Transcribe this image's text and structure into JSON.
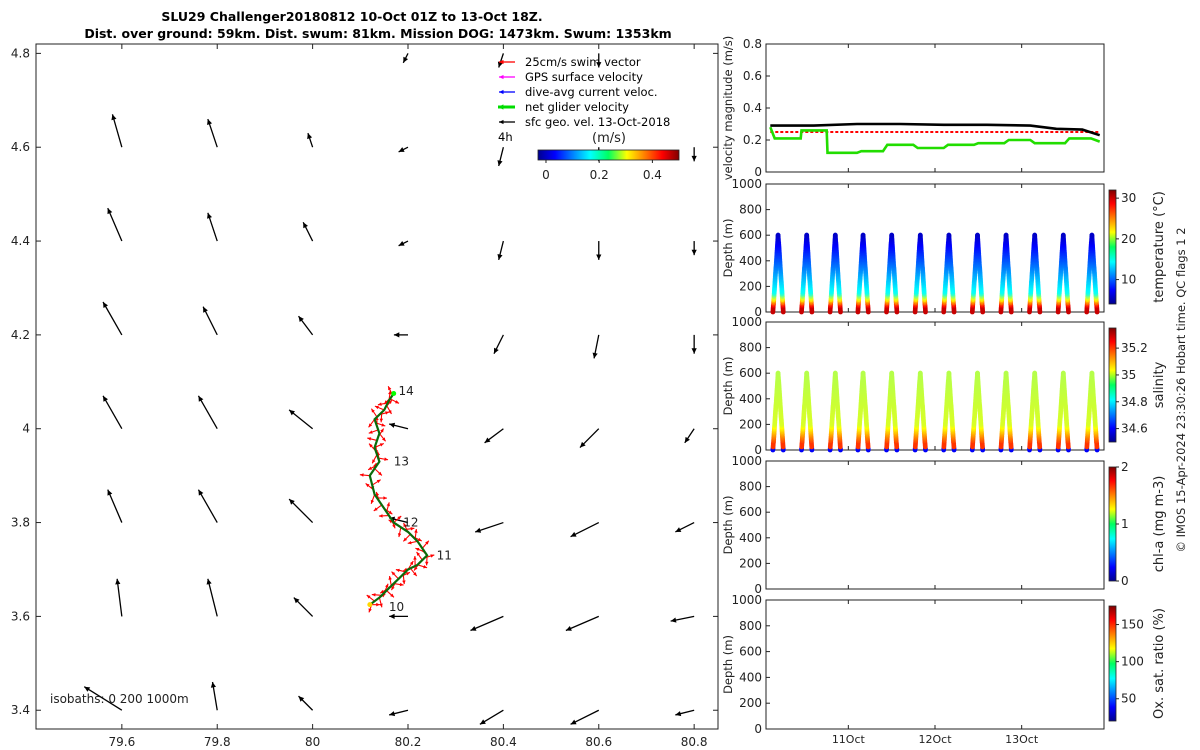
{
  "title": {
    "line1": "SLU29 Challenger20180812 10-Oct 01Z to 13-Oct 18Z.",
    "line2": "Dist. over ground: 59km. Dist. swum: 81km. Mission DOG: 1473km. Swum: 1353km"
  },
  "side_caption": "© IMOS 15-Apr-2024 23:30:26 Hobart time. QC flags 1  2",
  "colors": {
    "swim": "#ff0000",
    "gps": "#ff00ff",
    "dac": "#0000ff",
    "net": "#00dd00",
    "sfc": "#000000"
  },
  "chart_data": [
    {
      "type": "scatter",
      "name": "map",
      "xlim": [
        79.42,
        80.85
      ],
      "ylim": [
        3.36,
        4.82
      ],
      "xticks": [
        79.6,
        79.8,
        80,
        80.2,
        80.4,
        80.6,
        80.8
      ],
      "xtick_labels": [
        "79.6",
        "79.8",
        "80",
        "80.2",
        "80.4",
        "80.6",
        "80.8"
      ],
      "yticks": [
        3.4,
        3.6,
        3.8,
        4,
        4.2,
        4.4,
        4.6,
        4.8
      ],
      "ytick_labels": [
        "3.4",
        "3.6",
        "3.8",
        "4",
        "4.2",
        "4.4",
        "4.6",
        "4.8"
      ],
      "isobaths_label": "isobaths: 0   200   1000m",
      "legend": {
        "items": [
          "25cm/s swim vector",
          "GPS surface velocity",
          "dive-avg current veloc.",
          "net glider velocity",
          "sfc geo. vel. 13-Oct-2018"
        ],
        "scale_label": "4h",
        "colorbar_label": "(m/s)",
        "colorbar_ticks": [
          0,
          0.2,
          0.4
        ],
        "colorbar_tick_labels": [
          "0",
          "0.2",
          "0.4"
        ],
        "colorbar_range": [
          -0.03,
          0.5
        ]
      },
      "surface_vectors": [
        {
          "x": 79.6,
          "y": 3.4,
          "u": -0.08,
          "v": 0.05
        },
        {
          "x": 79.8,
          "y": 3.4,
          "u": -0.01,
          "v": 0.06
        },
        {
          "x": 80,
          "y": 3.4,
          "u": -0.03,
          "v": 0.03
        },
        {
          "x": 80.2,
          "y": 3.4,
          "u": -0.04,
          "v": -0.01
        },
        {
          "x": 80.4,
          "y": 3.4,
          "u": -0.05,
          "v": -0.03
        },
        {
          "x": 80.6,
          "y": 3.4,
          "u": -0.06,
          "v": -0.03
        },
        {
          "x": 80.8,
          "y": 3.4,
          "u": -0.04,
          "v": -0.01
        },
        {
          "x": 79.6,
          "y": 3.6,
          "u": -0.01,
          "v": 0.08
        },
        {
          "x": 79.8,
          "y": 3.6,
          "u": -0.02,
          "v": 0.08
        },
        {
          "x": 80,
          "y": 3.6,
          "u": -0.04,
          "v": 0.04
        },
        {
          "x": 80.2,
          "y": 3.6,
          "u": -0.04,
          "v": 0.0
        },
        {
          "x": 80.4,
          "y": 3.6,
          "u": -0.07,
          "v": -0.03
        },
        {
          "x": 80.6,
          "y": 3.6,
          "u": -0.07,
          "v": -0.03
        },
        {
          "x": 80.8,
          "y": 3.6,
          "u": -0.05,
          "v": -0.01
        },
        {
          "x": 79.6,
          "y": 3.8,
          "u": -0.03,
          "v": 0.07
        },
        {
          "x": 79.8,
          "y": 3.8,
          "u": -0.04,
          "v": 0.07
        },
        {
          "x": 80,
          "y": 3.8,
          "u": -0.05,
          "v": 0.05
        },
        {
          "x": 80.2,
          "y": 3.8,
          "u": -0.04,
          "v": 0.01
        },
        {
          "x": 80.4,
          "y": 3.8,
          "u": -0.06,
          "v": -0.02
        },
        {
          "x": 80.6,
          "y": 3.8,
          "u": -0.06,
          "v": -0.03
        },
        {
          "x": 80.8,
          "y": 3.8,
          "u": -0.04,
          "v": -0.02
        },
        {
          "x": 79.6,
          "y": 4.0,
          "u": -0.04,
          "v": 0.07
        },
        {
          "x": 79.8,
          "y": 4.0,
          "u": -0.04,
          "v": 0.07
        },
        {
          "x": 80,
          "y": 4.0,
          "u": -0.05,
          "v": 0.04
        },
        {
          "x": 80.2,
          "y": 4.0,
          "u": -0.04,
          "v": 0.01
        },
        {
          "x": 80.4,
          "y": 4.0,
          "u": -0.04,
          "v": -0.03
        },
        {
          "x": 80.6,
          "y": 4.0,
          "u": -0.04,
          "v": -0.04
        },
        {
          "x": 80.8,
          "y": 4.0,
          "u": -0.02,
          "v": -0.03
        },
        {
          "x": 79.6,
          "y": 4.2,
          "u": -0.04,
          "v": 0.07
        },
        {
          "x": 79.8,
          "y": 4.2,
          "u": -0.03,
          "v": 0.06
        },
        {
          "x": 80,
          "y": 4.2,
          "u": -0.03,
          "v": 0.04
        },
        {
          "x": 80.2,
          "y": 4.2,
          "u": -0.03,
          "v": 0.0
        },
        {
          "x": 80.4,
          "y": 4.2,
          "u": -0.02,
          "v": -0.04
        },
        {
          "x": 80.6,
          "y": 4.2,
          "u": -0.01,
          "v": -0.05
        },
        {
          "x": 80.8,
          "y": 4.2,
          "u": 0.0,
          "v": -0.04
        },
        {
          "x": 79.6,
          "y": 4.4,
          "u": -0.03,
          "v": 0.07
        },
        {
          "x": 79.8,
          "y": 4.4,
          "u": -0.02,
          "v": 0.06
        },
        {
          "x": 80,
          "y": 4.4,
          "u": -0.02,
          "v": 0.04
        },
        {
          "x": 80.2,
          "y": 4.4,
          "u": -0.02,
          "v": -0.01
        },
        {
          "x": 80.4,
          "y": 4.4,
          "u": -0.01,
          "v": -0.04
        },
        {
          "x": 80.6,
          "y": 4.4,
          "u": 0.0,
          "v": -0.04
        },
        {
          "x": 80.8,
          "y": 4.4,
          "u": 0.0,
          "v": -0.03
        },
        {
          "x": 79.6,
          "y": 4.6,
          "u": -0.02,
          "v": 0.07
        },
        {
          "x": 79.8,
          "y": 4.6,
          "u": -0.02,
          "v": 0.06
        },
        {
          "x": 80,
          "y": 4.6,
          "u": -0.01,
          "v": 0.03
        },
        {
          "x": 80.2,
          "y": 4.6,
          "u": -0.02,
          "v": -0.01
        },
        {
          "x": 80.4,
          "y": 4.6,
          "u": -0.01,
          "v": -0.04
        },
        {
          "x": 80.6,
          "y": 4.6,
          "u": 0.0,
          "v": -0.03
        },
        {
          "x": 80.8,
          "y": 4.6,
          "u": 0.0,
          "v": -0.03
        },
        {
          "x": 80.2,
          "y": 4.8,
          "u": -0.01,
          "v": -0.02
        },
        {
          "x": 80.4,
          "y": 4.8,
          "u": -0.01,
          "v": -0.03
        },
        {
          "x": 80.6,
          "y": 4.8,
          "u": 0.0,
          "v": -0.03
        }
      ],
      "track": {
        "lon": [
          80.12,
          80.14,
          80.16,
          80.18,
          80.2,
          80.22,
          80.24,
          80.22,
          80.2,
          80.17,
          80.15,
          80.13,
          80.12,
          80.14,
          80.13,
          80.14,
          80.13,
          80.15,
          80.16,
          80.17
        ],
        "lat": [
          3.625,
          3.64,
          3.66,
          3.68,
          3.7,
          3.71,
          3.73,
          3.76,
          3.78,
          3.8,
          3.83,
          3.86,
          3.9,
          3.93,
          3.96,
          3.99,
          4.02,
          4.04,
          4.06,
          4.075
        ]
      },
      "day_labels": [
        {
          "text": "10",
          "x": 80.16,
          "y": 3.62
        },
        {
          "text": "11",
          "x": 80.26,
          "y": 3.73
        },
        {
          "text": "12",
          "x": 80.19,
          "y": 3.8
        },
        {
          "text": "13",
          "x": 80.17,
          "y": 3.93
        },
        {
          "text": "14",
          "x": 80.18,
          "y": 4.08
        }
      ]
    },
    {
      "type": "line",
      "name": "velocity",
      "ylabel": "velocity magnitude (m/s)",
      "xlim": [
        0,
        3.9
      ],
      "ylim": [
        0,
        0.8
      ],
      "yticks": [
        0,
        0.2,
        0.4,
        0.6,
        0.8
      ],
      "ytick_labels": [
        "0",
        "0.2",
        "0.4",
        "0.6",
        "0.8"
      ],
      "series": [
        {
          "name": "25cm/s swim vector",
          "color": "#ff0000",
          "dashed": true,
          "x": [
            0,
            3.8
          ],
          "y": [
            0.25,
            0.25
          ]
        },
        {
          "name": "sfc geo. vel. 13-Oct-2018",
          "color": "#000000",
          "x": [
            0,
            0.5,
            1.0,
            1.5,
            2.0,
            2.5,
            3.0,
            3.3,
            3.6,
            3.8
          ],
          "y": [
            0.29,
            0.29,
            0.3,
            0.3,
            0.295,
            0.295,
            0.29,
            0.27,
            0.265,
            0.23
          ]
        },
        {
          "name": "net glider velocity",
          "color": "#22dd00",
          "x": [
            0,
            0.05,
            0.1,
            0.35,
            0.36,
            0.65,
            0.66,
            1.0,
            1.05,
            1.3,
            1.35,
            1.65,
            1.7,
            2.0,
            2.05,
            2.35,
            2.4,
            2.7,
            2.75,
            3.0,
            3.05,
            3.4,
            3.45,
            3.7,
            3.8
          ],
          "y": [
            0.28,
            0.21,
            0.21,
            0.21,
            0.26,
            0.26,
            0.12,
            0.12,
            0.13,
            0.13,
            0.17,
            0.17,
            0.15,
            0.15,
            0.17,
            0.17,
            0.18,
            0.18,
            0.2,
            0.2,
            0.18,
            0.18,
            0.21,
            0.21,
            0.19
          ]
        }
      ]
    },
    {
      "type": "scatter",
      "name": "temperature",
      "ylabel": "Depth (m)",
      "colorbar_label": "temperature (°C)",
      "colorbar_range": [
        4,
        32
      ],
      "colorbar_ticks": [
        10,
        20,
        30
      ],
      "colorbar_tick_labels": [
        "10",
        "20",
        "30"
      ],
      "ylim": [
        1000,
        0
      ],
      "yticks": [
        0,
        200,
        400,
        600,
        800,
        1000
      ],
      "ytick_labels": [
        "0",
        "200",
        "400",
        "600",
        "800",
        "1000"
      ],
      "profile_times": [
        0.05,
        0.38,
        0.71,
        1.03,
        1.36,
        1.69,
        2.02,
        2.35,
        2.68,
        3.01,
        3.34,
        3.67
      ],
      "max_depth": 600
    },
    {
      "type": "scatter",
      "name": "salinity",
      "ylabel": "Depth (m)",
      "colorbar_label": "salinity",
      "colorbar_range": [
        34.5,
        35.35
      ],
      "colorbar_ticks": [
        34.6,
        34.8,
        35,
        35.2
      ],
      "colorbar_tick_labels": [
        "34.6",
        "34.8",
        "35",
        "35.2"
      ],
      "ylim": [
        1000,
        0
      ],
      "yticks": [
        0,
        200,
        400,
        600,
        800,
        1000
      ],
      "ytick_labels": [
        "0",
        "200",
        "400",
        "600",
        "800",
        "1000"
      ],
      "profile_times": [
        0.05,
        0.38,
        0.71,
        1.03,
        1.36,
        1.69,
        2.02,
        2.35,
        2.68,
        3.01,
        3.34,
        3.67
      ],
      "max_depth": 600
    },
    {
      "type": "scatter",
      "name": "chla",
      "ylabel": "Depth (m)",
      "colorbar_label": "chl-a (mg m-3)",
      "colorbar_range": [
        0,
        2
      ],
      "colorbar_ticks": [
        0,
        1,
        2
      ],
      "colorbar_tick_labels": [
        "0",
        "1",
        "2"
      ],
      "ylim": [
        1000,
        0
      ],
      "yticks": [
        0,
        200,
        400,
        600,
        800,
        1000
      ],
      "ytick_labels": [
        "0",
        "200",
        "400",
        "600",
        "800",
        "1000"
      ]
    },
    {
      "type": "scatter",
      "name": "oxygen",
      "ylabel": "Depth (m)",
      "colorbar_label": "Ox. sat. ratio (%)",
      "colorbar_range": [
        20,
        175
      ],
      "colorbar_ticks": [
        50,
        100,
        150
      ],
      "colorbar_tick_labels": [
        "50",
        "100",
        "150"
      ],
      "ylim": [
        1000,
        0
      ],
      "yticks": [
        0,
        200,
        400,
        600,
        800,
        1000
      ],
      "ytick_labels": [
        "0",
        "200",
        "400",
        "600",
        "800",
        "1000"
      ],
      "xticks": [
        0.95,
        1.95,
        2.95
      ],
      "xtick_labels": [
        "11Oct",
        "12Oct",
        "13Oct"
      ]
    }
  ]
}
